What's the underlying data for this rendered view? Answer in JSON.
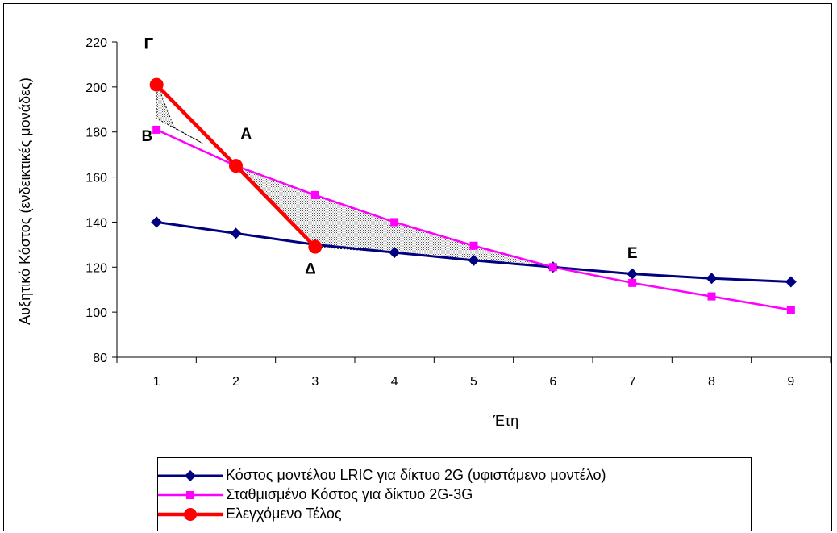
{
  "chart_data": {
    "type": "line",
    "xlabel": "Έτη",
    "ylabel": "Αυξητικό Κόστος (ενδεικτικές μονάδες)",
    "ylim": [
      80,
      220
    ],
    "yticks": [
      80,
      100,
      120,
      140,
      160,
      180,
      200,
      220
    ],
    "x": [
      1,
      2,
      3,
      4,
      5,
      6,
      7,
      8,
      9
    ],
    "series": [
      {
        "name": "Κόστος μοντέλου LRIC για δίκτυο 2G (υφιστάμενο μοντέλο)",
        "color": "#000080",
        "marker": "diamond",
        "x": [
          1,
          2,
          3,
          4,
          5,
          6,
          7,
          8,
          9
        ],
        "values": [
          140,
          135,
          130,
          126.5,
          123,
          120,
          117,
          115,
          113.5
        ]
      },
      {
        "name": "Σταθμισμένο Κόστος για δίκτυο 2G-3G",
        "color": "#ff00ff",
        "marker": "square",
        "x": [
          1,
          2,
          3,
          4,
          5,
          6,
          7,
          8,
          9
        ],
        "values": [
          181,
          165,
          152,
          140,
          129.5,
          120,
          113,
          107,
          101
        ]
      },
      {
        "name": "Ελεγχόμενο Τέλος",
        "color": "#ff0000",
        "marker": "circle",
        "x": [
          1,
          2,
          3
        ],
        "values": [
          201,
          165,
          129
        ]
      }
    ],
    "annotations": [
      {
        "label": "Γ",
        "x": 0.9,
        "y": 217
      },
      {
        "label": "Β",
        "x": 0.88,
        "y": 176
      },
      {
        "label": "Α",
        "x": 2.13,
        "y": 177
      },
      {
        "label": "Δ",
        "x": 2.94,
        "y": 117
      },
      {
        "label": "Ε",
        "x": 7.0,
        "y": 124
      }
    ],
    "grid": false,
    "legend_position": "bottom"
  }
}
